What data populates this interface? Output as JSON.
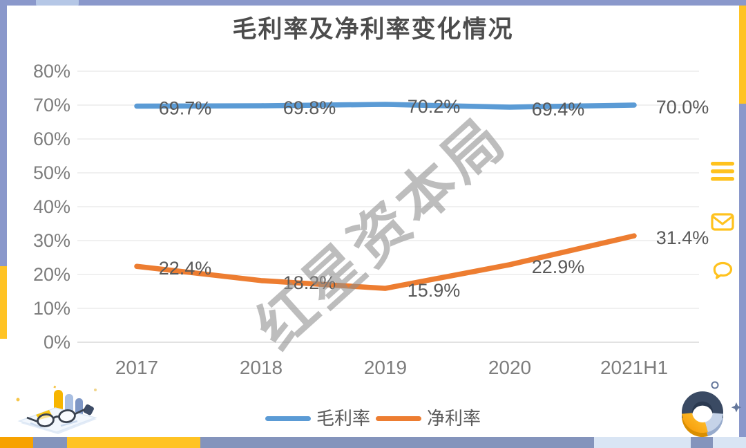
{
  "watermark": {
    "text": "红星资本局"
  },
  "chart_data": {
    "type": "line",
    "title": "毛利率及净利率变化情况",
    "categories": [
      "2017",
      "2018",
      "2019",
      "2020",
      "2021H1"
    ],
    "series": [
      {
        "name": "毛利率",
        "color": "#5B9BD5",
        "values": [
          69.7,
          69.8,
          70.2,
          69.4,
          70.0
        ],
        "labels": [
          "69.7%",
          "69.8%",
          "70.2%",
          "69.4%",
          "70.0%"
        ]
      },
      {
        "name": "净利率",
        "color": "#ED7D31",
        "values": [
          22.4,
          18.2,
          15.9,
          22.9,
          31.4
        ],
        "labels": [
          "22.4%",
          "18.2%",
          "15.9%",
          "22.9%",
          "31.4%"
        ]
      }
    ],
    "y_ticks": [
      {
        "label": "80%",
        "value": 80
      },
      {
        "label": "70%",
        "value": 70
      },
      {
        "label": "60%",
        "value": 60
      },
      {
        "label": "50%",
        "value": 50
      },
      {
        "label": "40%",
        "value": 40
      },
      {
        "label": "30%",
        "value": 30
      },
      {
        "label": "20%",
        "value": 20
      },
      {
        "label": "10%",
        "value": 10
      },
      {
        "label": "0%",
        "value": 0
      }
    ],
    "ylim": [
      0,
      80
    ],
    "grid": true,
    "legend_position": "bottom"
  },
  "side_icons": [
    {
      "name": "menu"
    },
    {
      "name": "mail"
    },
    {
      "name": "comment"
    }
  ],
  "colors": {
    "series_blue": "#5B9BD5",
    "series_orange": "#ED7D31",
    "icon_yellow": "#FFC21E",
    "frame_periwinkle": "#8A98CB",
    "frame_yellow": "#FFC324",
    "frame_steel": "#8494BC",
    "frame_orange": "#F7A200",
    "frame_lightblue": "#D9E5F4",
    "title_gray": "#4c4c4c",
    "label_gray": "#595959",
    "tick_gray": "#7d7d7d",
    "gridline": "#ececec"
  }
}
